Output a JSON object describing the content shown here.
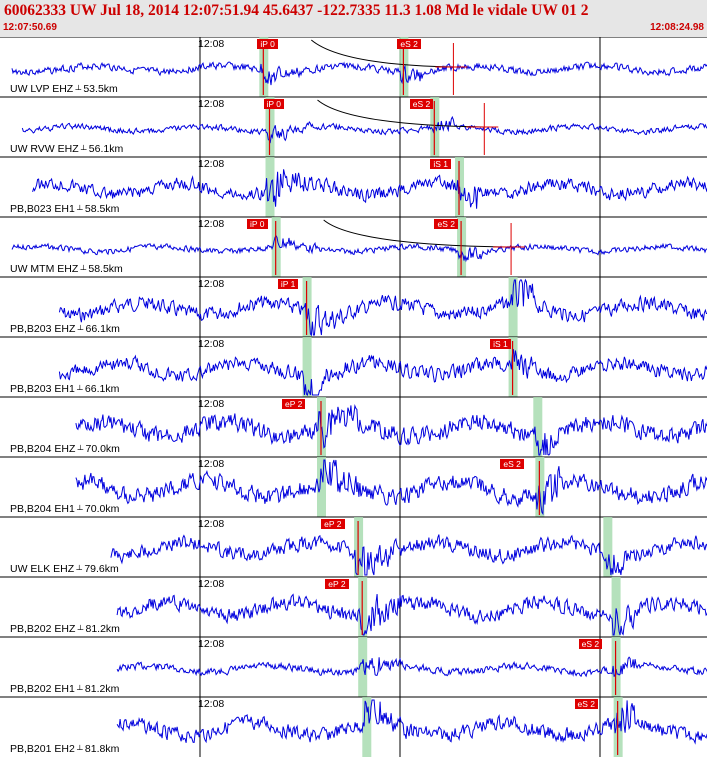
{
  "header": {
    "title": "60062333 UW Jul 18, 2014 12:07:51.94    45.6437  -122.7335 11.3  1.08  Md le vidale UW 01    2",
    "time_start": "12:07:50.69",
    "time_end": "12:08:24.98"
  },
  "colors": {
    "trace": "#0000dd",
    "pick": "#dd0000",
    "pick_text": "#ffffff",
    "window": "#a8dcb0",
    "header_bg": "#e6e6e6",
    "header_text": "#cc0000",
    "grid": "#000000"
  },
  "traces": [
    {
      "label": "UW LVP EHZ",
      "dist": "53.5km",
      "tick_label": "12:08",
      "picks": [
        {
          "text": "iP 0",
          "t": 12.2
        },
        {
          "text": "eS 2",
          "t": 19.0
        }
      ],
      "pwin": 12.2,
      "swin": 19.0,
      "start": 0.0,
      "end": 36.1,
      "amp": 5,
      "curve": true
    },
    {
      "label": "UW RVW EHZ",
      "dist": "56.1km",
      "tick_label": "12:08",
      "picks": [
        {
          "text": "iP 0",
          "t": 12.5
        },
        {
          "text": "eS 2",
          "t": 19.6
        }
      ],
      "pwin": 12.5,
      "swin": 20.5,
      "start": 0.5,
      "end": 36.6,
      "amp": 4,
      "curve": true
    },
    {
      "label": "PB,B023 EH1",
      "dist": "58.5km",
      "tick_label": "12:08",
      "picks": [
        {
          "text": "iS 1",
          "t": 20.6
        }
      ],
      "pwin": 12.5,
      "swin": 21.7,
      "start": 1.0,
      "end": 37.1,
      "amp": 9,
      "curve": false
    },
    {
      "label": "UW MTM EHZ",
      "dist": "58.5km",
      "tick_label": "12:08",
      "picks": [
        {
          "text": "iP 0",
          "t": 11.7
        },
        {
          "text": "eS 2",
          "t": 20.8
        }
      ],
      "pwin": 12.8,
      "swin": 21.8,
      "start": 0.0,
      "end": 37.1,
      "amp": 4,
      "curve": true
    },
    {
      "label": "PB,B203 EHZ",
      "dist": "66.1km",
      "tick_label": "12:08",
      "picks": [
        {
          "text": "iP 1",
          "t": 13.2
        }
      ],
      "pwin": 14.3,
      "swin": 24.3,
      "start": 2.3,
      "end": 38.4,
      "amp": 10,
      "curve": false
    },
    {
      "label": "PB,B203 EH1",
      "dist": "66.1km",
      "tick_label": "12:08",
      "picks": [
        {
          "text": "iS 1",
          "t": 23.5
        }
      ],
      "pwin": 14.3,
      "swin": 24.3,
      "start": 2.3,
      "end": 38.4,
      "amp": 10,
      "curve": false
    },
    {
      "label": "PB,B204 EHZ",
      "dist": "70.0km",
      "tick_label": "12:08",
      "picks": [
        {
          "text": "eP 2",
          "t": 13.4
        }
      ],
      "pwin": 15.0,
      "swin": 25.5,
      "start": 3.1,
      "end": 39.2,
      "amp": 12,
      "curve": false
    },
    {
      "label": "PB,B204 EH1",
      "dist": "70.0km",
      "tick_label": "12:08",
      "picks": [
        {
          "text": "eS 2",
          "t": 24.0
        }
      ],
      "pwin": 15.0,
      "swin": 25.6,
      "start": 3.1,
      "end": 39.2,
      "amp": 12,
      "curve": false
    },
    {
      "label": "UW ELK EHZ",
      "dist": "79.6km",
      "tick_label": "12:08",
      "picks": [
        {
          "text": "eP 2",
          "t": 15.3
        }
      ],
      "pwin": 16.8,
      "swin": 28.9,
      "start": 4.8,
      "end": 40.9,
      "amp": 10,
      "curve": false
    },
    {
      "label": "PB,B202 EHZ",
      "dist": "81.2km",
      "tick_label": "12:08",
      "picks": [
        {
          "text": "eP 2",
          "t": 15.5
        }
      ],
      "pwin": 17.0,
      "swin": 29.3,
      "start": 5.1,
      "end": 41.2,
      "amp": 10,
      "curve": false
    },
    {
      "label": "PB,B202 EH1",
      "dist": "81.2km",
      "tick_label": "12:08",
      "picks": [
        {
          "text": "eS 2",
          "t": 27.8
        }
      ],
      "pwin": 17.0,
      "swin": 29.3,
      "start": 5.1,
      "end": 41.2,
      "amp": 5,
      "curve": false
    },
    {
      "label": "PB,B201 EH2",
      "dist": "81.8km",
      "tick_label": "12:08",
      "picks": [
        {
          "text": "eS 2",
          "t": 27.6
        }
      ],
      "pwin": 17.2,
      "swin": 29.4,
      "start": 5.1,
      "end": 41.2,
      "amp": 10,
      "curve": false
    }
  ]
}
